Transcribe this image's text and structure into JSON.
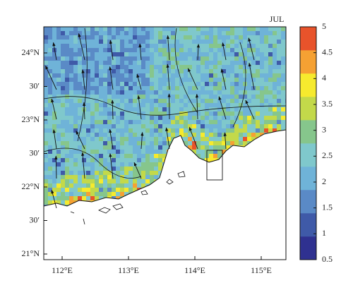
{
  "title": "JUL",
  "map": {
    "lon_labels": [
      "112°E",
      "113°E",
      "114°E",
      "115°E"
    ],
    "lat_labels": [
      "24°N",
      "30′",
      "23°N",
      "30′",
      "22°N",
      "30′",
      "21°N"
    ]
  },
  "colorbar": {
    "lim": [
      0.5,
      5
    ],
    "ticks": [
      0.5,
      1,
      1.5,
      2,
      2.5,
      3,
      3.5,
      4,
      4.5,
      5
    ],
    "colors": [
      "#2f3190",
      "#3f5aa8",
      "#5a8ac6",
      "#6fb3d8",
      "#7fc8cc",
      "#86c68c",
      "#c3d94a",
      "#f6ea2e",
      "#f5a133",
      "#e8532b"
    ]
  }
}
